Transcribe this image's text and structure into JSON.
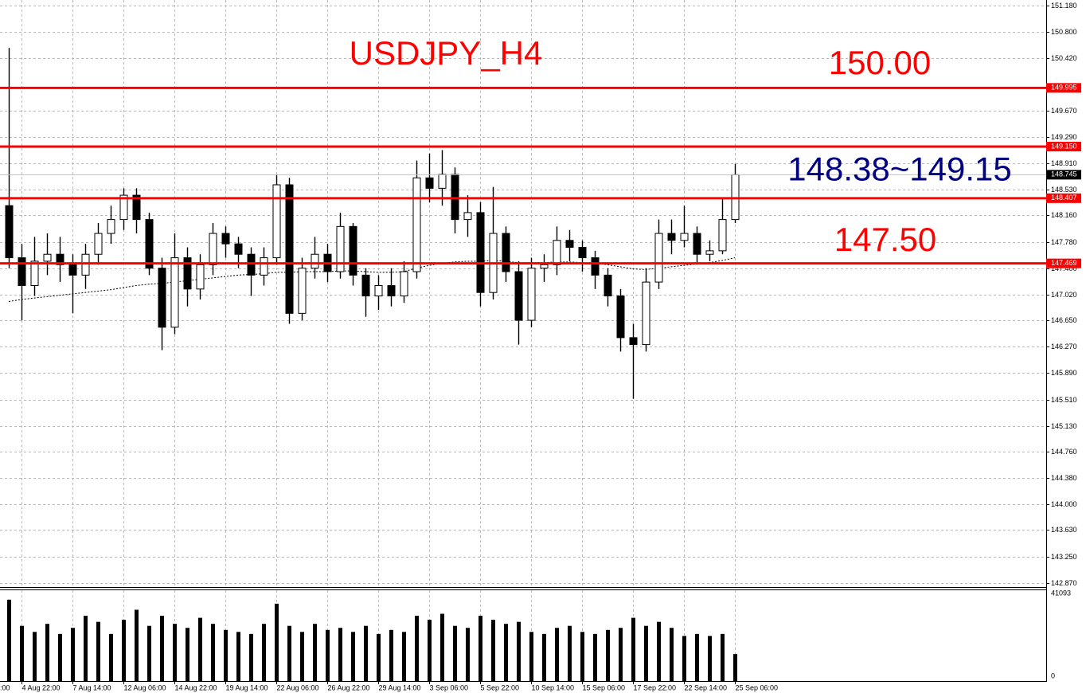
{
  "chart_data": {
    "type": "candlestick",
    "title": "USDJPY_H4",
    "title_color": "#ff0000",
    "annotations": [
      {
        "text": "150.00",
        "color": "#ff0000",
        "value": 150.0
      },
      {
        "text": "148.38~149.15",
        "color": "#000080",
        "value": 148.745
      },
      {
        "text": "147.50",
        "color": "#ff0000",
        "value": 147.5
      }
    ],
    "x_label_partial": ":00",
    "categories": [
      null,
      "4 Aug 22:00",
      null,
      null,
      null,
      "7 Aug 14:00",
      null,
      null,
      null,
      "12 Aug 06:00",
      null,
      null,
      null,
      "14 Aug 22:00",
      null,
      null,
      null,
      "19 Aug 14:00",
      null,
      null,
      null,
      "22 Aug 06:00",
      null,
      null,
      null,
      "26 Aug 22:00",
      null,
      null,
      null,
      "29 Aug 14:00",
      null,
      null,
      null,
      "3 Sep 06:00",
      null,
      null,
      null,
      "5 Sep 22:00",
      null,
      null,
      null,
      "10 Sep 14:00",
      null,
      null,
      null,
      "15 Sep 06:00",
      null,
      null,
      null,
      "17 Sep 22:00",
      null,
      null,
      null,
      "22 Sep 14:00",
      null,
      null,
      null,
      "25 Sep 06:00"
    ],
    "open": [
      148.3,
      147.55,
      147.15,
      147.5,
      147.6,
      147.45,
      147.3,
      147.6,
      147.9,
      148.1,
      148.45,
      148.1,
      147.4,
      146.55,
      147.55,
      147.1,
      147.45,
      147.9,
      147.75,
      147.6,
      147.3,
      147.55,
      148.6,
      146.75,
      147.4,
      147.6,
      147.35,
      148.0,
      147.3,
      147.0,
      147.15,
      147.0,
      147.35,
      148.7,
      148.55,
      148.75,
      148.1,
      148.2,
      147.05,
      147.9,
      147.35,
      146.65,
      147.4,
      147.45,
      147.8,
      147.7,
      147.55,
      147.3,
      147.0,
      146.4,
      146.3,
      147.2,
      147.9,
      147.8,
      147.9,
      147.6,
      147.65,
      148.1
    ],
    "high": [
      150.57,
      147.75,
      147.85,
      147.9,
      147.85,
      147.6,
      147.75,
      148.05,
      148.3,
      148.55,
      148.55,
      148.2,
      147.55,
      147.9,
      147.7,
      147.6,
      148.05,
      148.0,
      147.85,
      147.7,
      147.7,
      148.75,
      148.7,
      147.55,
      147.85,
      147.75,
      148.2,
      148.05,
      147.4,
      147.3,
      147.4,
      147.5,
      148.95,
      149.05,
      149.1,
      148.85,
      148.45,
      148.35,
      148.57,
      148.0,
      147.5,
      147.55,
      147.6,
      148.0,
      147.95,
      147.8,
      147.65,
      147.4,
      147.1,
      146.6,
      147.4,
      148.1,
      148.1,
      148.3,
      148.0,
      147.8,
      148.4,
      148.9
    ],
    "low": [
      147.4,
      146.65,
      147.0,
      147.3,
      147.2,
      146.75,
      147.1,
      147.45,
      147.75,
      147.95,
      147.9,
      147.3,
      146.22,
      146.45,
      146.85,
      146.95,
      147.3,
      147.55,
      147.4,
      147.0,
      147.15,
      147.45,
      146.6,
      146.65,
      147.25,
      147.2,
      147.25,
      147.15,
      146.7,
      146.8,
      146.85,
      146.9,
      147.25,
      148.35,
      148.3,
      147.9,
      147.85,
      146.85,
      146.95,
      147.2,
      146.3,
      146.55,
      147.2,
      147.3,
      147.5,
      147.35,
      147.1,
      146.85,
      146.2,
      145.52,
      146.2,
      147.1,
      147.6,
      147.7,
      147.45,
      147.5,
      147.6,
      148.05
    ],
    "close": [
      147.55,
      147.15,
      147.5,
      147.6,
      147.45,
      147.3,
      147.6,
      147.9,
      148.1,
      148.45,
      148.1,
      147.4,
      146.55,
      147.55,
      147.1,
      147.45,
      147.9,
      147.75,
      147.6,
      147.3,
      147.55,
      148.6,
      146.75,
      147.4,
      147.6,
      147.35,
      148.0,
      147.3,
      147.0,
      147.15,
      147.0,
      147.35,
      148.7,
      148.55,
      148.75,
      148.1,
      148.2,
      147.05,
      147.9,
      147.35,
      146.65,
      147.4,
      147.45,
      147.8,
      147.7,
      147.55,
      147.3,
      147.0,
      146.4,
      146.3,
      147.2,
      147.9,
      147.8,
      147.9,
      147.6,
      147.65,
      148.1,
      148.745
    ],
    "candle_color": "#000000",
    "ma": {
      "color": "#000000",
      "values": [
        146.92,
        146.95,
        146.97,
        146.99,
        147.01,
        147.03,
        147.05,
        147.07,
        147.09,
        147.12,
        147.15,
        147.17,
        147.18,
        147.2,
        147.22,
        147.24,
        147.26,
        147.28,
        147.3,
        147.31,
        147.32,
        147.34,
        147.34,
        147.35,
        147.35,
        147.35,
        147.36,
        147.36,
        147.35,
        147.34,
        147.34,
        147.35,
        147.4,
        147.44,
        147.47,
        147.49,
        147.5,
        147.5,
        147.51,
        147.5,
        147.48,
        147.48,
        147.48,
        147.49,
        147.49,
        147.48,
        147.47,
        147.45,
        147.42,
        147.39,
        147.38,
        147.4,
        147.42,
        147.44,
        147.46,
        147.48,
        147.51,
        147.55
      ]
    },
    "levels": [
      149.995,
      {
        "value": 149.15,
        "label": "149.150"
      },
      148.407,
      147.469
    ],
    "level_color": "#ff0000",
    "current_price": 148.745,
    "ylim": [
      142.81,
      151.26
    ],
    "yticks": [
      {
        "value": 151.18,
        "label": "151.180"
      },
      {
        "value": 150.8,
        "label": "150.800"
      },
      {
        "value": 150.42,
        "label": "150.420"
      },
      {
        "value": 149.67,
        "label": "149.670"
      },
      {
        "value": 149.29,
        "label": "149.290"
      },
      {
        "value": 148.91,
        "label": "148.910"
      },
      {
        "value": 148.53,
        "label": "148.530"
      },
      {
        "value": 148.16,
        "label": "148.160"
      },
      {
        "value": 147.78,
        "label": "147.780"
      },
      {
        "value": 147.4,
        "label": "147.400"
      },
      {
        "value": 147.02,
        "label": "147.020"
      },
      {
        "value": 146.65,
        "label": "146.650"
      },
      {
        "value": 146.27,
        "label": "146.270"
      },
      {
        "value": 145.89,
        "label": "145.890"
      },
      {
        "value": 145.51,
        "label": "145.510"
      },
      {
        "value": 145.13,
        "label": "145.130"
      },
      {
        "value": 144.76,
        "label": "144.760"
      },
      {
        "value": 144.38,
        "label": "144.380"
      },
      {
        "value": 144.0,
        "label": "144.000"
      },
      {
        "value": 143.63,
        "label": "143.630"
      },
      {
        "value": 143.25,
        "label": "143.250"
      },
      {
        "value": 142.87,
        "label": "142.870"
      }
    ],
    "grid": true,
    "volume": {
      "color": "#000000",
      "ylim": [
        0,
        41093
      ],
      "yticks": [
        0,
        41093
      ],
      "values": [
        38000,
        25000,
        22000,
        26000,
        21000,
        24000,
        30000,
        27000,
        21000,
        28000,
        33000,
        25000,
        30000,
        26000,
        24000,
        29000,
        26000,
        23000,
        22000,
        21000,
        26000,
        36000,
        25000,
        22000,
        26000,
        23000,
        24000,
        22000,
        25000,
        21000,
        23000,
        22000,
        30000,
        28000,
        31000,
        25000,
        24000,
        30000,
        28000,
        26000,
        27000,
        22000,
        21000,
        24000,
        25000,
        22000,
        21000,
        23000,
        24000,
        29000,
        25000,
        27000,
        24000,
        20000,
        21000,
        20000,
        21000,
        11000
      ]
    }
  }
}
